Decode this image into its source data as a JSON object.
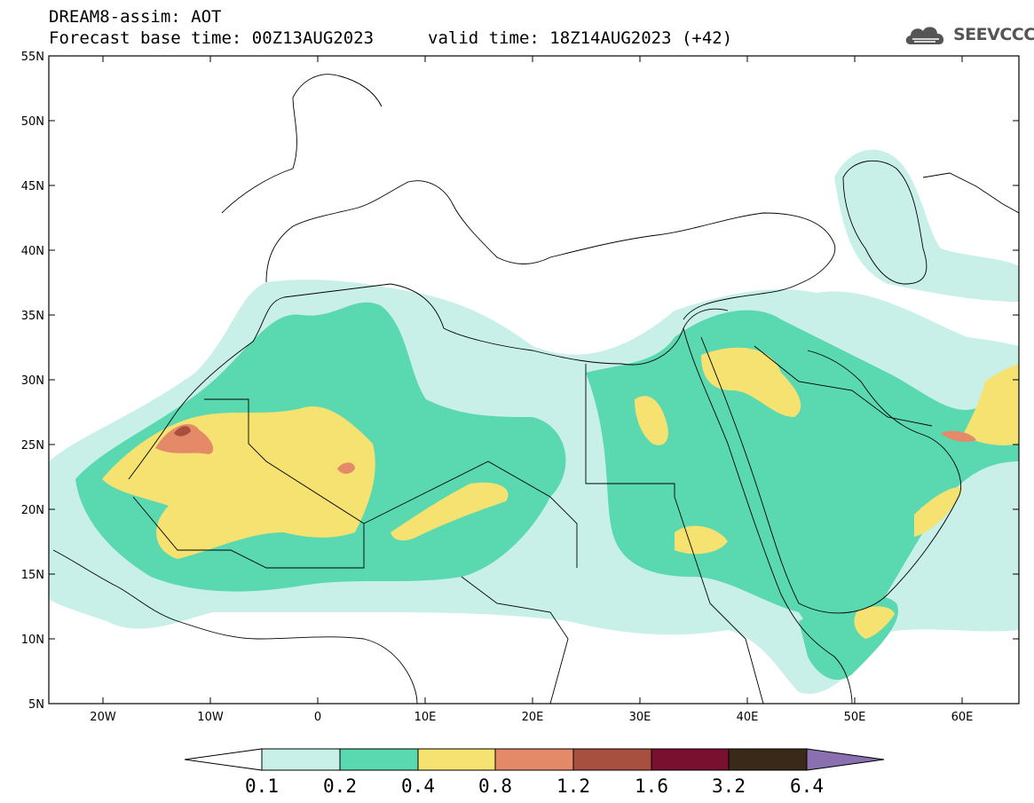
{
  "header": {
    "title": "DREAM8-assim: AOT",
    "base_time": "Forecast base time: 00Z13AUG2023",
    "valid_time": "valid time: 18Z14AUG2023 (+42)"
  },
  "logo": {
    "text": "SEEVCCC",
    "icon": "cloud-icon"
  },
  "map": {
    "lat_labels": [
      "55N",
      "50N",
      "45N",
      "40N",
      "35N",
      "30N",
      "25N",
      "20N",
      "15N",
      "10N",
      "5N"
    ],
    "lon_labels": [
      "20W",
      "10W",
      "0",
      "10E",
      "20E",
      "30E",
      "40E",
      "50E",
      "60E"
    ]
  },
  "colorbar": {
    "labels": [
      "0.1",
      "0.2",
      "0.4",
      "0.8",
      "1.2",
      "1.6",
      "3.2",
      "6.4"
    ],
    "colors": [
      "#c8f0e8",
      "#5ad8b0",
      "#f5e270",
      "#e58a68",
      "#a85040",
      "#7a1030",
      "#3a2818",
      "#8a70b0"
    ]
  },
  "colors": {
    "c01": "#c8f0e8",
    "c02": "#5ad8b0",
    "c04": "#f5e270",
    "c08": "#e58a68",
    "c12": "#a85040"
  }
}
